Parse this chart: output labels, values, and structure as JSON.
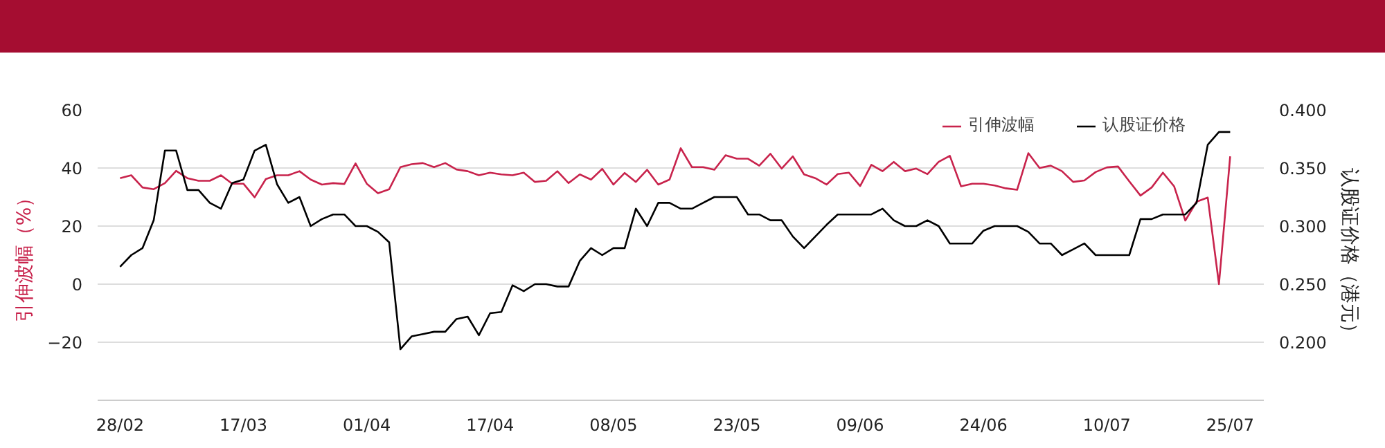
{
  "chart_data": {
    "type": "line",
    "xlabel": null,
    "ylabel": "引伸波幅（%）",
    "y2label": "认股证价格（港元）",
    "categories": [
      "28/02",
      null,
      null,
      null,
      null,
      null,
      null,
      null,
      null,
      null,
      null,
      "17/03",
      null,
      null,
      null,
      null,
      null,
      null,
      null,
      null,
      null,
      null,
      "01/04",
      null,
      null,
      null,
      null,
      null,
      null,
      null,
      null,
      null,
      null,
      "17/04",
      null,
      null,
      null,
      null,
      null,
      null,
      null,
      null,
      null,
      null,
      "08/05",
      null,
      null,
      null,
      null,
      null,
      null,
      null,
      null,
      null,
      null,
      "23/05",
      null,
      null,
      null,
      null,
      null,
      null,
      null,
      null,
      null,
      null,
      "09/06",
      null,
      null,
      null,
      null,
      null,
      null,
      null,
      null,
      null,
      null,
      "24/06",
      null,
      null,
      null,
      null,
      null,
      null,
      null,
      null,
      null,
      null,
      "10/07",
      null,
      null,
      null,
      null,
      null,
      null,
      null,
      null,
      null,
      null,
      "25/07"
    ],
    "series": [
      {
        "name": "引伸波幅",
        "color": "#c8234c",
        "values": [
          36.5,
          37.5,
          33.3,
          32.7,
          34.8,
          39,
          36.5,
          35.6,
          35.6,
          37.5,
          34.6,
          34.6,
          29.9,
          36.2,
          37.5,
          37.5,
          38.9,
          36,
          34.3,
          34.8,
          34.5,
          41.6,
          34.6,
          31.3,
          32.7,
          40.3,
          41.3,
          41.7,
          40.3,
          41.7,
          39.5,
          38.9,
          37.5,
          38.4,
          37.8,
          37.5,
          38.4,
          35.2,
          35.6,
          38.9,
          34.8,
          37.8,
          36,
          39.7,
          34.3,
          38.3,
          35.2,
          39.4,
          34.3,
          36,
          46.8,
          40.3,
          40.3,
          39.4,
          44.4,
          43.2,
          43.2,
          40.8,
          44.9,
          39.8,
          44,
          37.8,
          36.5,
          34.3,
          37.9,
          38.4,
          33.8,
          41.1,
          38.9,
          42.1,
          38.9,
          39.8,
          37.9,
          42.1,
          44.2,
          33.7,
          34.6,
          34.6,
          34,
          33,
          32.5,
          45.1,
          40,
          40.8,
          38.9,
          35.2,
          35.7,
          38.6,
          40.2,
          40.5,
          35.4,
          30.5,
          33.3,
          38.4,
          33.7,
          21.9,
          28.4,
          29.8,
          0,
          44
        ]
      },
      {
        "name": "认股证价格",
        "color": "#000000",
        "axis": "y2",
        "values": [
          0.265,
          0.275,
          0.281,
          0.305,
          0.365,
          0.365,
          0.331,
          0.331,
          0.32,
          0.315,
          0.337,
          0.34,
          0.365,
          0.37,
          0.336,
          0.32,
          0.325,
          0.3,
          0.306,
          0.31,
          0.31,
          0.3,
          0.3,
          0.295,
          0.286,
          0.194,
          0.205,
          0.207,
          0.209,
          0.209,
          0.22,
          0.222,
          0.206,
          0.225,
          0.226,
          0.249,
          0.244,
          0.25,
          0.25,
          0.248,
          0.248,
          0.27,
          0.281,
          0.275,
          0.281,
          0.281,
          0.315,
          0.3,
          0.32,
          0.32,
          0.315,
          0.315,
          0.32,
          0.325,
          0.325,
          0.325,
          0.31,
          0.31,
          0.305,
          0.305,
          0.291,
          0.281,
          0.291,
          0.301,
          0.31,
          0.31,
          0.31,
          0.31,
          0.315,
          0.305,
          0.3,
          0.3,
          0.305,
          0.3,
          0.285,
          0.285,
          0.285,
          0.296,
          0.3,
          0.3,
          0.3,
          0.295,
          0.285,
          0.285,
          0.275,
          0.28,
          0.285,
          0.275,
          0.275,
          0.275,
          0.275,
          0.306,
          0.306,
          0.31,
          0.31,
          0.31,
          0.32,
          0.37,
          0.381,
          0.381
        ]
      }
    ],
    "ylim": [
      -40,
      60
    ],
    "yticks": [
      -20,
      0,
      20,
      40,
      60
    ],
    "y2lim": [
      0.15,
      0.4
    ],
    "y2ticks": [
      {
        "value": 0.2,
        "label": "0.200"
      },
      {
        "value": 0.25,
        "label": "0.250"
      },
      {
        "value": 0.3,
        "label": "0.300"
      },
      {
        "value": 0.35,
        "label": "0.350"
      },
      {
        "value": 0.4,
        "label": "0.400"
      }
    ],
    "grid": "y",
    "legend": "top right",
    "marker": "none",
    "line_style": "solid"
  }
}
